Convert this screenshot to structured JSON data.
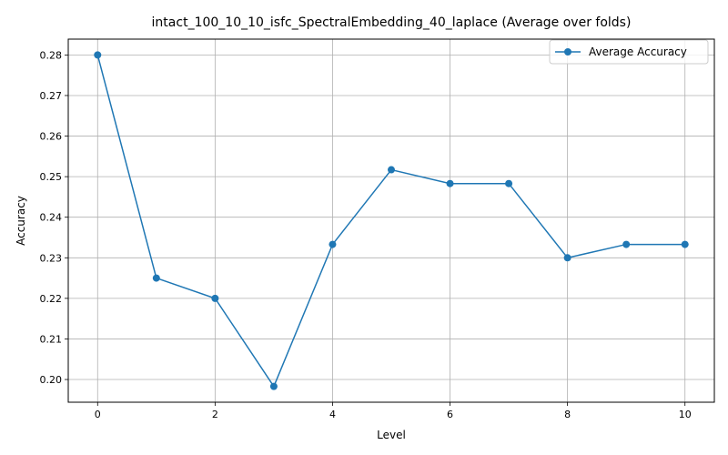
{
  "chart_data": {
    "type": "line",
    "title": "intact_100_10_10_isfc_SpectralEmbedding_40_laplace (Average over folds)",
    "xlabel": "Level",
    "ylabel": "Accuracy",
    "x": [
      0,
      1,
      2,
      3,
      4,
      5,
      6,
      7,
      8,
      9,
      10
    ],
    "series": [
      {
        "name": "Average Accuracy",
        "values": [
          0.28,
          0.225,
          0.22,
          0.1983,
          0.2333,
          0.2517,
          0.2483,
          0.2483,
          0.23,
          0.2333,
          0.2333
        ],
        "color": "#1f77b4",
        "marker": "circle"
      }
    ],
    "xlim": [
      -0.5,
      10.5
    ],
    "ylim": [
      0.1944,
      0.2839
    ],
    "xticks": [
      0,
      2,
      4,
      6,
      8,
      10
    ],
    "yticks": [
      0.2,
      0.21,
      0.22,
      0.23,
      0.24,
      0.25,
      0.26,
      0.27,
      0.28
    ],
    "ytick_labels": [
      "0.20",
      "0.21",
      "0.22",
      "0.23",
      "0.24",
      "0.25",
      "0.26",
      "0.27",
      "0.28"
    ],
    "grid": true,
    "legend_position": "top-right"
  }
}
